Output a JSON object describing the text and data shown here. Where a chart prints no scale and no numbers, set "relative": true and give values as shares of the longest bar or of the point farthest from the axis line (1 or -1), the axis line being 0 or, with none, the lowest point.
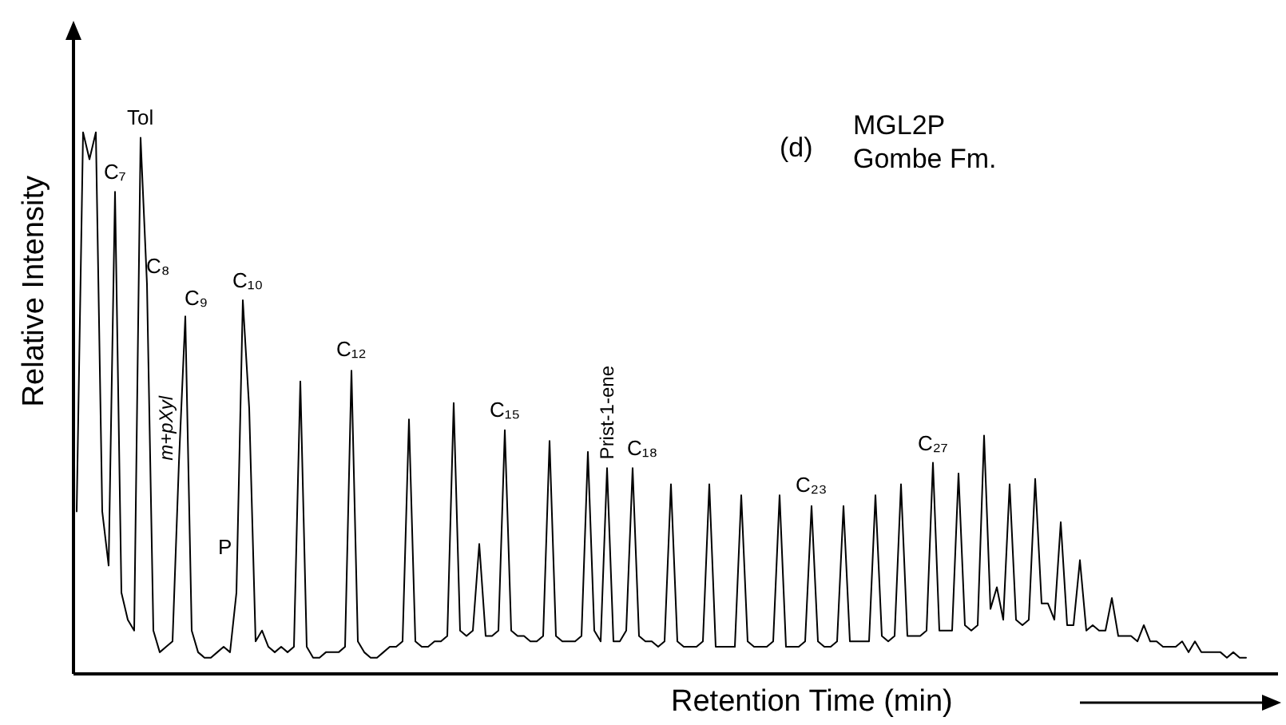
{
  "chart_data": {
    "type": "line",
    "title": "MGL2P",
    "subtitle": "Gombe Fm.",
    "xlabel": "Retention Time (min)",
    "ylabel": "Relative Intensity",
    "relative": true,
    "color": "#000000",
    "annotations": [
      "C₇",
      "Tol",
      "C₈",
      "m+pXyl",
      "C₉",
      "P",
      "C₁₀",
      "C₁₂",
      "C₁₅",
      "Prist-1-ene",
      "C₁₈",
      "C₂₃",
      "C₂₇",
      "(d)"
    ],
    "categories": [
      null,
      null,
      null,
      null,
      null,
      null,
      null,
      null,
      null,
      null,
      null,
      null,
      null,
      null,
      null,
      null,
      null,
      null,
      null,
      null,
      null,
      null,
      null,
      null,
      null,
      null,
      null,
      null,
      null,
      null,
      null,
      null,
      null,
      null,
      null,
      null,
      null,
      null,
      null,
      null,
      null,
      null,
      null,
      null,
      null,
      null,
      null,
      null,
      null,
      null,
      null,
      null,
      null,
      null,
      null,
      null,
      null,
      null,
      null,
      null,
      null,
      null,
      null,
      null,
      null,
      null,
      null,
      null,
      null,
      null,
      null,
      null,
      null,
      null,
      null,
      null,
      null,
      null,
      null,
      null,
      null,
      null,
      null,
      null,
      null,
      null,
      null,
      null,
      null,
      null,
      null,
      null,
      null,
      null,
      null,
      null,
      null,
      null,
      null,
      null,
      null,
      null,
      null,
      null,
      null,
      null,
      null,
      null,
      null,
      null,
      null,
      null,
      null,
      null,
      null,
      null,
      null,
      null,
      null,
      null,
      null,
      null,
      null,
      null,
      null,
      null,
      null,
      null,
      null,
      null,
      null,
      null,
      null,
      null,
      null,
      null,
      null,
      null,
      null,
      null,
      null,
      null,
      null,
      null,
      null,
      null,
      null,
      null,
      null,
      null,
      null,
      null,
      null,
      null,
      null,
      null,
      null,
      null,
      null,
      null,
      null,
      null,
      null,
      null,
      null,
      null,
      null,
      null,
      null,
      null,
      null,
      null,
      null,
      null,
      null,
      null,
      null,
      null,
      null,
      null,
      null,
      null,
      null,
      null
    ],
    "values": [
      0.3,
      1.0,
      0.95,
      1.0,
      0.3,
      0.2,
      0.89,
      0.15,
      0.1,
      0.08,
      0.99,
      0.72,
      0.08,
      0.04,
      0.05,
      0.06,
      0.39,
      0.66,
      0.08,
      0.04,
      0.03,
      0.03,
      0.04,
      0.05,
      0.04,
      0.15,
      0.69,
      0.49,
      0.06,
      0.08,
      0.05,
      0.04,
      0.05,
      0.04,
      0.05,
      0.54,
      0.05,
      0.03,
      0.03,
      0.04,
      0.04,
      0.04,
      0.05,
      0.56,
      0.06,
      0.04,
      0.03,
      0.03,
      0.04,
      0.05,
      0.05,
      0.06,
      0.47,
      0.06,
      0.05,
      0.05,
      0.06,
      0.06,
      0.07,
      0.5,
      0.08,
      0.07,
      0.08,
      0.24,
      0.07,
      0.07,
      0.08,
      0.45,
      0.08,
      0.07,
      0.07,
      0.06,
      0.06,
      0.07,
      0.43,
      0.07,
      0.06,
      0.06,
      0.06,
      0.07,
      0.41,
      0.08,
      0.06,
      0.38,
      0.06,
      0.06,
      0.08,
      0.38,
      0.07,
      0.06,
      0.06,
      0.05,
      0.06,
      0.35,
      0.06,
      0.05,
      0.05,
      0.05,
      0.06,
      0.35,
      0.05,
      0.05,
      0.05,
      0.05,
      0.33,
      0.06,
      0.05,
      0.05,
      0.05,
      0.06,
      0.33,
      0.05,
      0.05,
      0.05,
      0.06,
      0.31,
      0.06,
      0.05,
      0.05,
      0.06,
      0.31,
      0.06,
      0.06,
      0.06,
      0.06,
      0.33,
      0.07,
      0.06,
      0.07,
      0.35,
      0.07,
      0.07,
      0.07,
      0.08,
      0.39,
      0.08,
      0.08,
      0.08,
      0.37,
      0.09,
      0.08,
      0.09,
      0.44,
      0.12,
      0.16,
      0.1,
      0.35,
      0.1,
      0.09,
      0.1,
      0.36,
      0.13,
      0.13,
      0.1,
      0.28,
      0.09,
      0.09,
      0.21,
      0.08,
      0.09,
      0.08,
      0.08,
      0.14,
      0.07,
      0.07,
      0.07,
      0.06,
      0.09,
      0.06,
      0.06,
      0.05,
      0.05,
      0.05,
      0.06,
      0.04,
      0.06,
      0.04,
      0.04,
      0.04,
      0.04,
      0.03,
      0.04,
      0.03,
      0.03
    ]
  }
}
